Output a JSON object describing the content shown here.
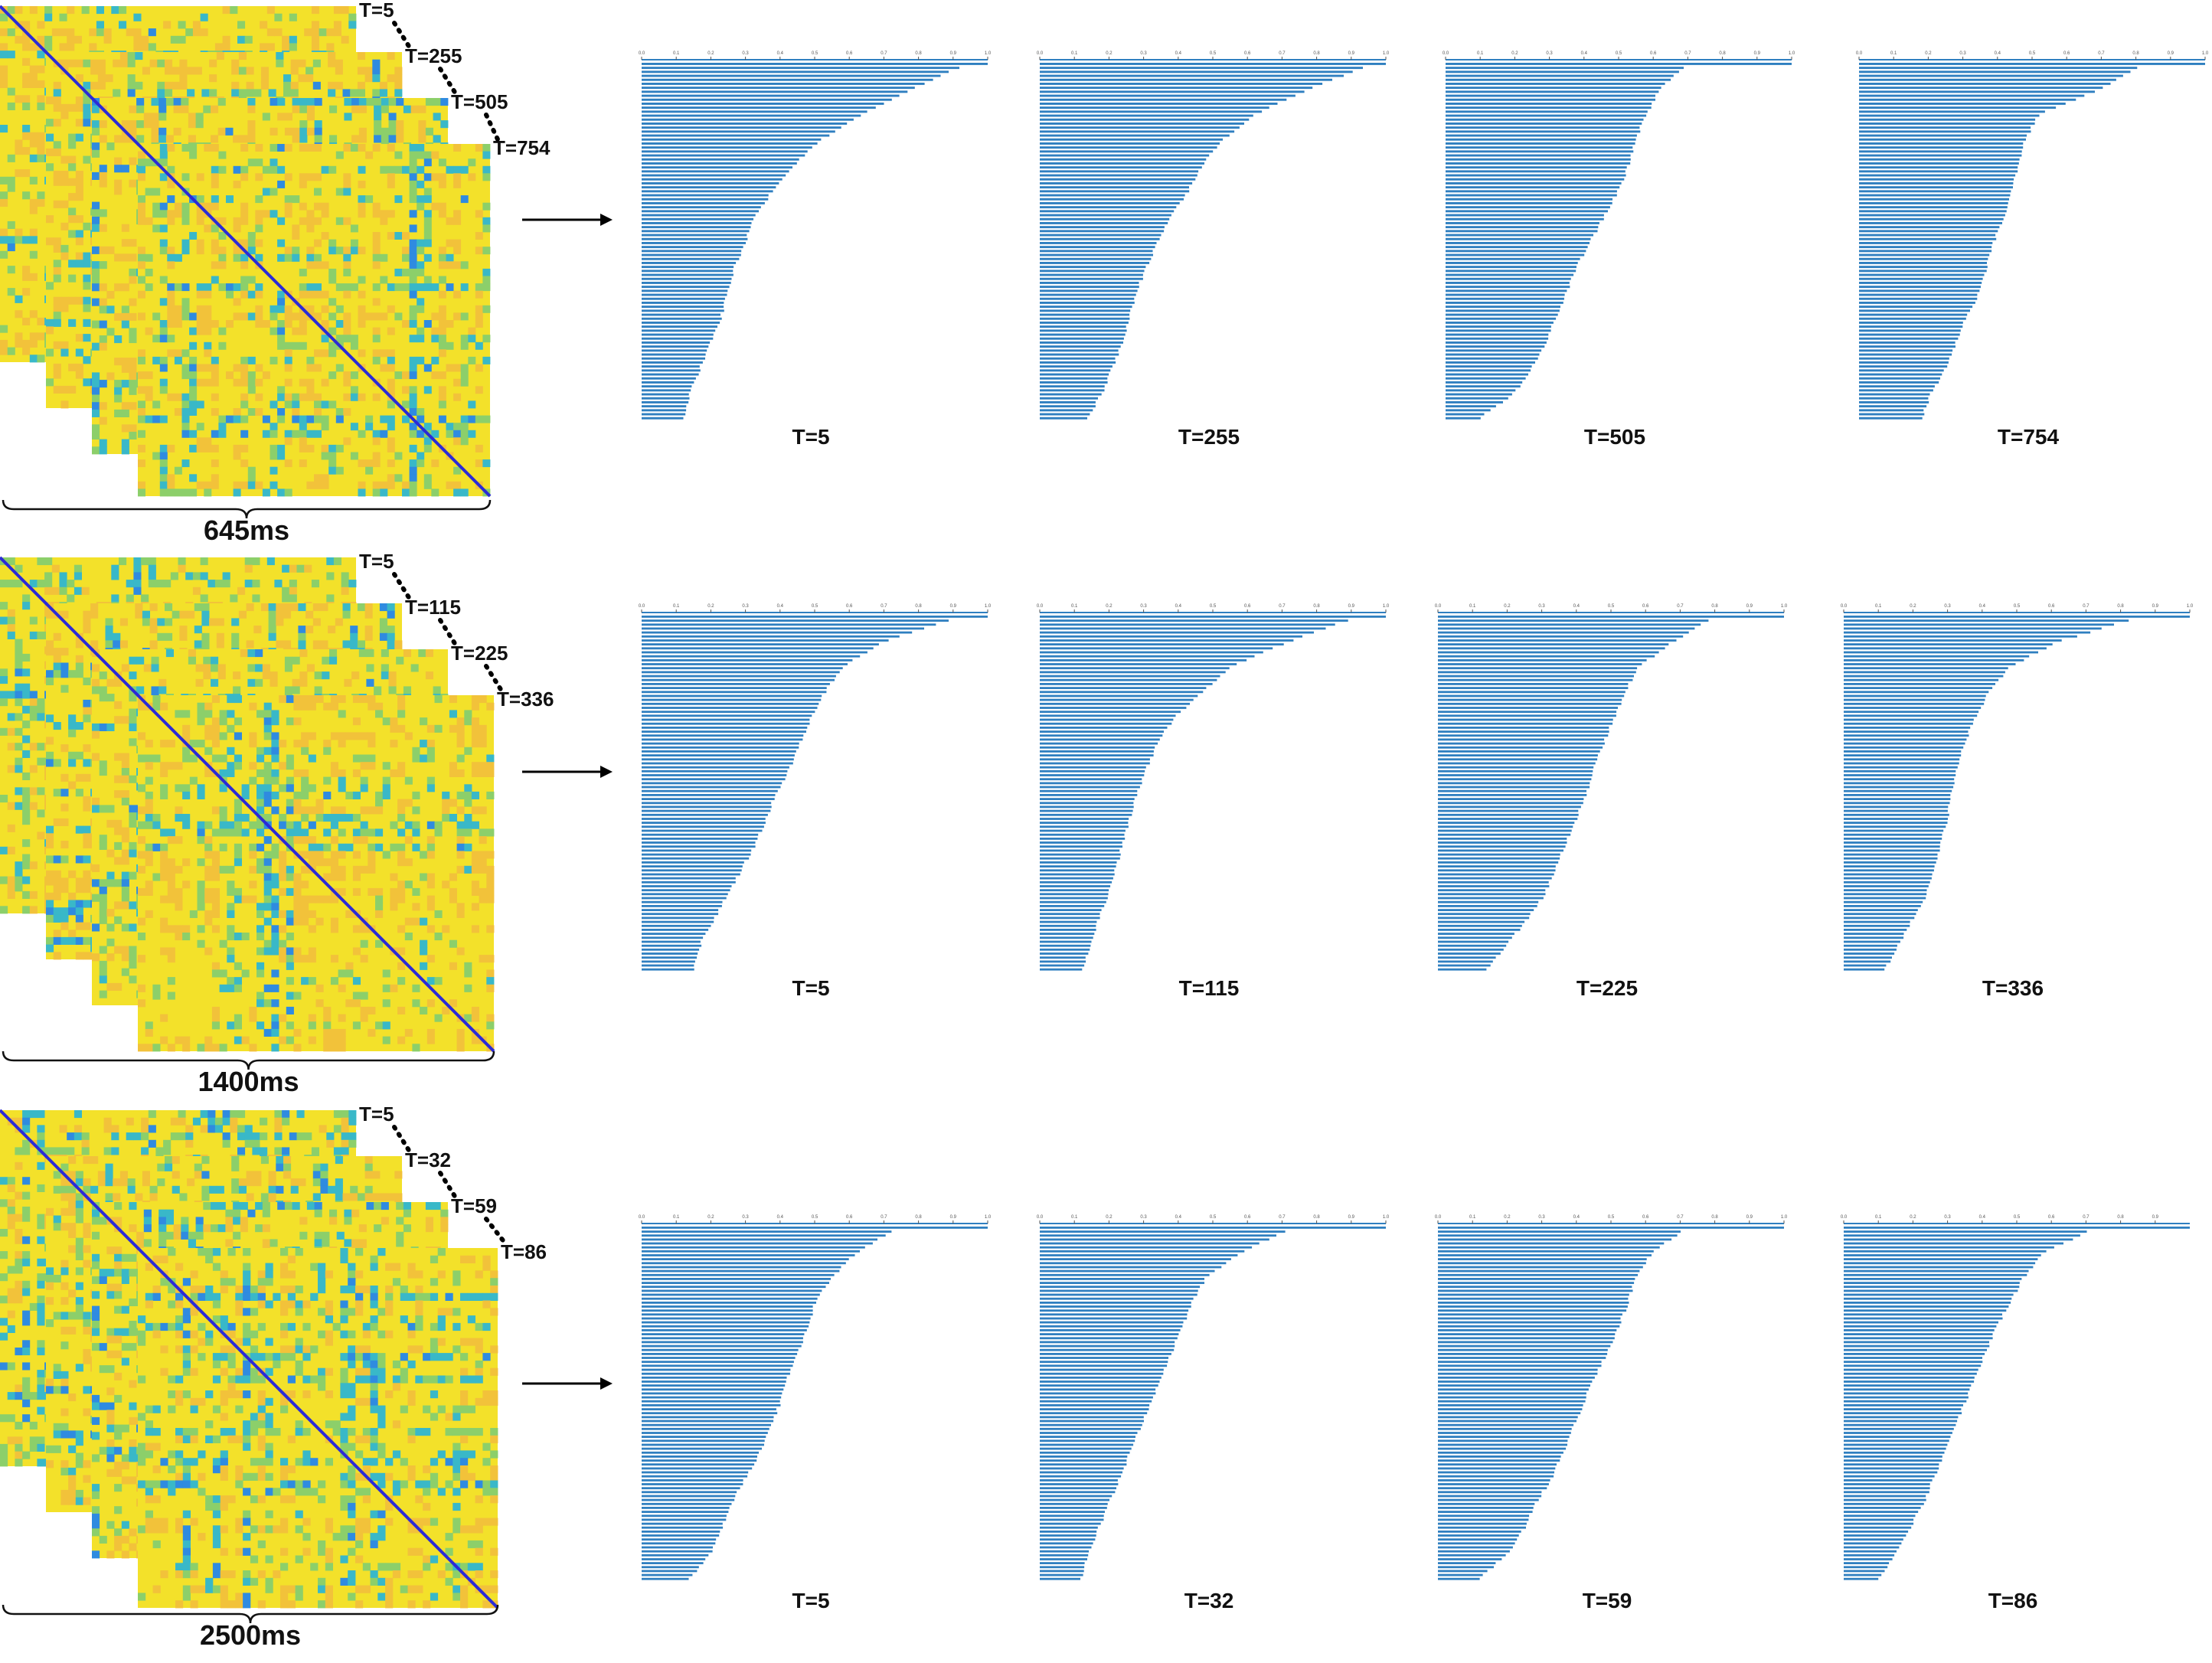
{
  "colors": {
    "matrix_low": "#2b2bd6",
    "matrix_mid_blue": "#2f8be0",
    "matrix_teal": "#39b8c8",
    "matrix_green": "#8ccf6a",
    "matrix_yellow": "#f3e12a",
    "matrix_orange": "#f2c23a",
    "bar_blue": "#2f7fc0",
    "text": "#111111",
    "background": "#ffffff"
  },
  "panels": [
    {
      "duration_label": "645ms",
      "layers": [
        "T=5",
        "T=255",
        "T=505",
        "T=754"
      ],
      "arrow_icon": "right-arrow-icon",
      "charts": [
        {
          "label": "T=5",
          "xlim": [
            0,
            1
          ],
          "ticks": [
            "0.0",
            "0.1",
            "0.2",
            "0.3",
            "0.4",
            "0.5",
            "0.6",
            "0.7",
            "0.8",
            "0.9",
            "1.0"
          ],
          "profile": [
            0.94,
            0.78,
            0.64,
            0.52,
            0.44,
            0.38,
            0.33,
            0.3,
            0.27,
            0.25,
            0.23,
            0.2,
            0.17,
            0.14,
            0.12
          ]
        },
        {
          "label": "T=255",
          "xlim": [
            0,
            1
          ],
          "ticks": [
            "0.0",
            "0.1",
            "0.2",
            "0.3",
            "0.4",
            "0.5",
            "0.6",
            "0.7",
            "0.8",
            "0.9",
            "1.0"
          ],
          "profile": [
            0.96,
            0.78,
            0.62,
            0.53,
            0.47,
            0.43,
            0.38,
            0.34,
            0.31,
            0.28,
            0.26,
            0.24,
            0.21,
            0.18,
            0.14
          ]
        },
        {
          "label": "T=505",
          "xlim": [
            0,
            1
          ],
          "ticks": [
            "0.0",
            "0.1",
            "0.2",
            "0.3",
            "0.4",
            "0.5",
            "0.6",
            "0.7",
            "0.8",
            "0.9",
            "1.0"
          ],
          "profile": [
            0.7,
            0.62,
            0.58,
            0.55,
            0.53,
            0.5,
            0.46,
            0.42,
            0.38,
            0.35,
            0.32,
            0.29,
            0.25,
            0.2,
            0.1
          ]
        },
        {
          "label": "T=754",
          "xlim": [
            0,
            1
          ],
          "ticks": [
            "0.0",
            "0.1",
            "0.2",
            "0.3",
            "0.4",
            "0.5",
            "0.6",
            "0.7",
            "0.8",
            "0.9",
            "1.0"
          ],
          "profile": [
            0.82,
            0.7,
            0.52,
            0.48,
            0.46,
            0.44,
            0.42,
            0.39,
            0.37,
            0.35,
            0.31,
            0.28,
            0.25,
            0.21,
            0.18
          ]
        }
      ]
    },
    {
      "duration_label": "1400ms",
      "layers": [
        "T=5",
        "T=115",
        "T=225",
        "T=336"
      ],
      "arrow_icon": "right-arrow-icon",
      "charts": [
        {
          "label": "T=5",
          "xlim": [
            0,
            1
          ],
          "ticks": [
            "0.0",
            "0.1",
            "0.2",
            "0.3",
            "0.4",
            "0.5",
            "0.6",
            "0.7",
            "0.8",
            "0.9",
            "1.0"
          ],
          "profile": [
            0.92,
            0.7,
            0.58,
            0.53,
            0.49,
            0.46,
            0.43,
            0.39,
            0.36,
            0.33,
            0.29,
            0.25,
            0.21,
            0.17,
            0.15
          ]
        },
        {
          "label": "T=115",
          "xlim": [
            0,
            1
          ],
          "ticks": [
            "0.0",
            "0.1",
            "0.2",
            "0.3",
            "0.4",
            "0.5",
            "0.6",
            "0.7",
            "0.8",
            "0.9",
            "1.0"
          ],
          "profile": [
            0.92,
            0.72,
            0.55,
            0.47,
            0.39,
            0.34,
            0.31,
            0.28,
            0.26,
            0.24,
            0.22,
            0.2,
            0.17,
            0.15,
            0.12
          ]
        },
        {
          "label": "T=225",
          "xlim": [
            0,
            1
          ],
          "ticks": [
            "0.0",
            "0.1",
            "0.2",
            "0.3",
            "0.4",
            "0.5",
            "0.6",
            "0.7",
            "0.8",
            "0.9",
            "1.0"
          ],
          "profile": [
            0.8,
            0.68,
            0.58,
            0.54,
            0.51,
            0.48,
            0.45,
            0.43,
            0.4,
            0.37,
            0.34,
            0.31,
            0.26,
            0.2,
            0.14
          ]
        },
        {
          "label": "T=336",
          "xlim": [
            0,
            1
          ],
          "ticks": [
            "0.0",
            "0.1",
            "0.2",
            "0.3",
            "0.4",
            "0.5",
            "0.6",
            "0.7",
            "0.8",
            "0.9",
            "1.0"
          ],
          "profile": [
            0.86,
            0.62,
            0.48,
            0.42,
            0.38,
            0.35,
            0.33,
            0.31,
            0.3,
            0.28,
            0.26,
            0.24,
            0.2,
            0.16,
            0.12
          ]
        }
      ]
    },
    {
      "duration_label": "2500ms",
      "layers": [
        "T=5",
        "T=32",
        "T=59",
        "T=86"
      ],
      "arrow_icon": "right-arrow-icon",
      "charts": [
        {
          "label": "T=5",
          "xlim": [
            0,
            1
          ],
          "ticks": [
            "0.0",
            "0.1",
            "0.2",
            "0.3",
            "0.4",
            "0.5",
            "0.6",
            "0.7",
            "0.8",
            "0.9",
            "1.0"
          ],
          "profile": [
            0.74,
            0.62,
            0.55,
            0.5,
            0.48,
            0.45,
            0.42,
            0.4,
            0.37,
            0.34,
            0.3,
            0.26,
            0.23,
            0.2,
            0.14
          ]
        },
        {
          "label": "T=32",
          "xlim": [
            0,
            1
          ],
          "ticks": [
            "0.0",
            "0.1",
            "0.2",
            "0.3",
            "0.4",
            "0.5",
            "0.6",
            "0.7",
            "0.8",
            "0.9",
            "1.0"
          ],
          "profile": [
            0.73,
            0.58,
            0.48,
            0.44,
            0.41,
            0.38,
            0.35,
            0.32,
            0.29,
            0.26,
            0.23,
            0.2,
            0.17,
            0.14,
            0.12
          ]
        },
        {
          "label": "T=59",
          "xlim": [
            0,
            1
          ],
          "ticks": [
            "0.0",
            "0.1",
            "0.2",
            "0.3",
            "0.4",
            "0.5",
            "0.6",
            "0.7",
            "0.8",
            "0.9",
            "1.0"
          ],
          "profile": [
            0.72,
            0.62,
            0.57,
            0.55,
            0.52,
            0.49,
            0.45,
            0.42,
            0.39,
            0.36,
            0.33,
            0.28,
            0.25,
            0.2,
            0.12
          ]
        },
        {
          "label": "T=86",
          "xlim": [
            0,
            1
          ],
          "ticks": [
            "0.0",
            "0.1",
            "0.2",
            "0.3",
            "0.4",
            "0.5",
            "0.6",
            "0.7",
            "0.8",
            "0.9"
          ],
          "profile": [
            0.73,
            0.58,
            0.52,
            0.48,
            0.44,
            0.41,
            0.38,
            0.35,
            0.32,
            0.29,
            0.26,
            0.23,
            0.19,
            0.15,
            0.1
          ]
        }
      ]
    }
  ]
}
